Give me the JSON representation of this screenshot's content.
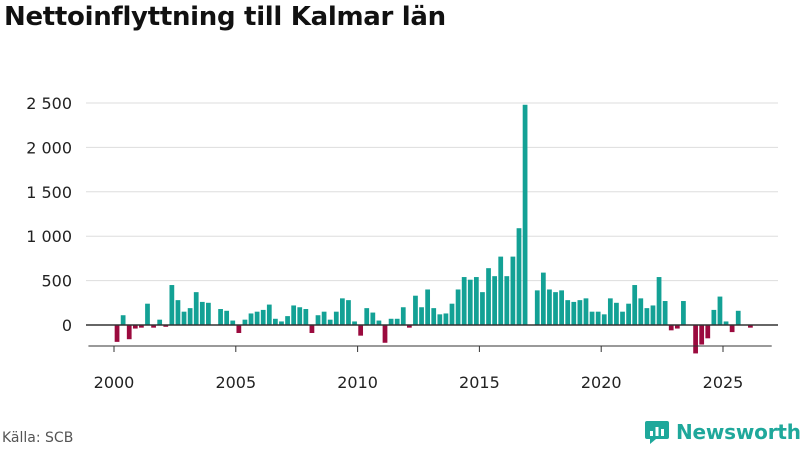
{
  "title": "Nettoinflyttning till Kalmar län",
  "source": "Källa: SCB",
  "brand": "Newsworthy",
  "colors": {
    "positive": "#13a195",
    "negative": "#9b0a3e",
    "grid": "#dddddd",
    "axis": "#333333",
    "brand": "#1fa89b"
  },
  "chart_data": {
    "type": "bar",
    "title": "Nettoinflyttning till Kalmar län",
    "xlabel": "",
    "ylabel": "",
    "frequency": "quarterly",
    "start_year": 2000,
    "ylim": [
      -330,
      2600
    ],
    "yticks": [
      0,
      500,
      1000,
      1500,
      2000,
      2500
    ],
    "ytick_labels": [
      "0",
      "500",
      "1 000",
      "1 500",
      "2 000",
      "2 500"
    ],
    "xticks": [
      2000,
      2005,
      2010,
      2015,
      2020,
      2025
    ],
    "xtick_labels": [
      "2000",
      "2005",
      "2010",
      "2015",
      "2020",
      "2025"
    ],
    "xlim": [
      1998.95,
      2027.0
    ],
    "values": [
      -190,
      110,
      -160,
      -40,
      -30,
      240,
      -30,
      60,
      -20,
      450,
      280,
      150,
      190,
      370,
      260,
      250,
      0,
      180,
      160,
      50,
      -90,
      60,
      130,
      150,
      170,
      230,
      70,
      40,
      100,
      220,
      200,
      180,
      -90,
      110,
      150,
      60,
      150,
      300,
      280,
      40,
      -120,
      190,
      140,
      50,
      -200,
      70,
      70,
      200,
      -30,
      330,
      200,
      400,
      190,
      120,
      130,
      240,
      400,
      540,
      510,
      540,
      370,
      640,
      550,
      770,
      550,
      770,
      1090,
      2480,
      0,
      390,
      590,
      400,
      370,
      390,
      280,
      260,
      280,
      300,
      150,
      150,
      120,
      300,
      250,
      150,
      240,
      450,
      300,
      190,
      220,
      540,
      270,
      -60,
      -40,
      270,
      0,
      -320,
      -220,
      -150,
      170,
      320,
      40,
      -80,
      160,
      0,
      -30
    ]
  }
}
